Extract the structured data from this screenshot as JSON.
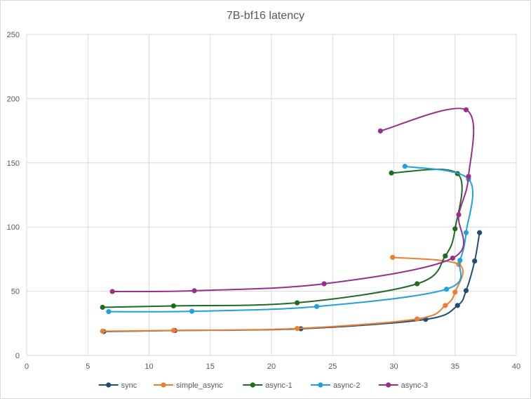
{
  "chart_data": {
    "type": "scatter",
    "title": "7B-bf16 latency",
    "xlabel": "",
    "ylabel": "",
    "xlim": [
      0,
      40
    ],
    "ylim": [
      0,
      250
    ],
    "x_ticks": [
      0,
      5,
      10,
      15,
      20,
      25,
      30,
      35,
      40
    ],
    "y_ticks": [
      0,
      50,
      100,
      150,
      200,
      250
    ],
    "x_tick_labels": [
      "0",
      "5",
      "10",
      "15",
      "20",
      "25",
      "30",
      "35",
      "40"
    ],
    "y_tick_labels": [
      "0",
      "50",
      "100",
      "150",
      "200",
      "250"
    ],
    "grid": true,
    "legend_position": "bottom",
    "series": [
      {
        "name": "sync",
        "color": "#1f4e79",
        "points": [
          [
            6.3,
            18.6
          ],
          [
            12.1,
            19.4
          ],
          [
            22.4,
            20.8
          ],
          [
            32.6,
            28.1
          ],
          [
            35.2,
            38.9
          ],
          [
            35.9,
            50.5
          ],
          [
            36.6,
            73.5
          ],
          [
            37.0,
            95.6
          ]
        ]
      },
      {
        "name": "simple_async",
        "color": "#ed7d31",
        "points": [
          [
            6.2,
            18.9
          ],
          [
            12.0,
            19.5
          ],
          [
            22.1,
            21.0
          ],
          [
            31.9,
            28.4
          ],
          [
            34.2,
            38.9
          ],
          [
            35.0,
            49.3
          ],
          [
            35.3,
            70.9
          ],
          [
            29.9,
            76.4
          ]
        ]
      },
      {
        "name": "async-1",
        "color": "#1e6b24",
        "points": [
          [
            6.2,
            37.5
          ],
          [
            12.0,
            38.6
          ],
          [
            22.1,
            41.0
          ],
          [
            31.9,
            55.8
          ],
          [
            34.2,
            77.5
          ],
          [
            35.0,
            98.6
          ],
          [
            35.2,
            141.6
          ],
          [
            29.8,
            142.1
          ]
        ]
      },
      {
        "name": "async-2",
        "color": "#1fa1dd",
        "points": [
          [
            6.7,
            34.1
          ],
          [
            13.5,
            34.4
          ],
          [
            23.7,
            38.1
          ],
          [
            34.3,
            51.6
          ],
          [
            35.4,
            74.0
          ],
          [
            35.9,
            95.6
          ],
          [
            36.1,
            137.4
          ],
          [
            30.9,
            147.3
          ]
        ]
      },
      {
        "name": "async-3",
        "color": "#9b2d8e",
        "points": [
          [
            7.0,
            49.8
          ],
          [
            13.7,
            50.4
          ],
          [
            24.3,
            55.8
          ],
          [
            34.8,
            75.8
          ],
          [
            35.3,
            109.6
          ],
          [
            36.1,
            139.4
          ],
          [
            35.9,
            191.3
          ],
          [
            28.9,
            174.8
          ]
        ]
      }
    ]
  }
}
